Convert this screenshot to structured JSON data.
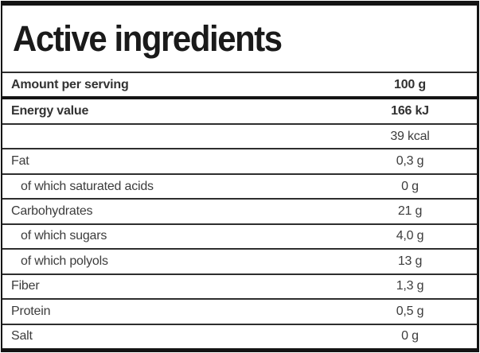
{
  "title": "Active ingredients",
  "rows": [
    {
      "label": "Amount per serving",
      "value": "100 g"
    },
    {
      "label": "Energy value",
      "value": "166 kJ"
    },
    {
      "label": "",
      "value": "39 kcal"
    },
    {
      "label": "Fat",
      "value": "0,3 g"
    },
    {
      "label": "of which saturated acids",
      "value": "0 g"
    },
    {
      "label": "Carbohydrates",
      "value": "21 g"
    },
    {
      "label": "of which sugars",
      "value": "4,0 g"
    },
    {
      "label": "of which polyols",
      "value": "13 g"
    },
    {
      "label": "Fiber",
      "value": "1,3 g"
    },
    {
      "label": "Protein",
      "value": "0,5 g"
    },
    {
      "label": "Salt",
      "value": "0 g"
    }
  ],
  "colors": {
    "border": "#141414",
    "separator": "#2e2e2e",
    "text": "#3c3c3c",
    "title_text": "#1a1a1a",
    "background": "#ffffff"
  }
}
